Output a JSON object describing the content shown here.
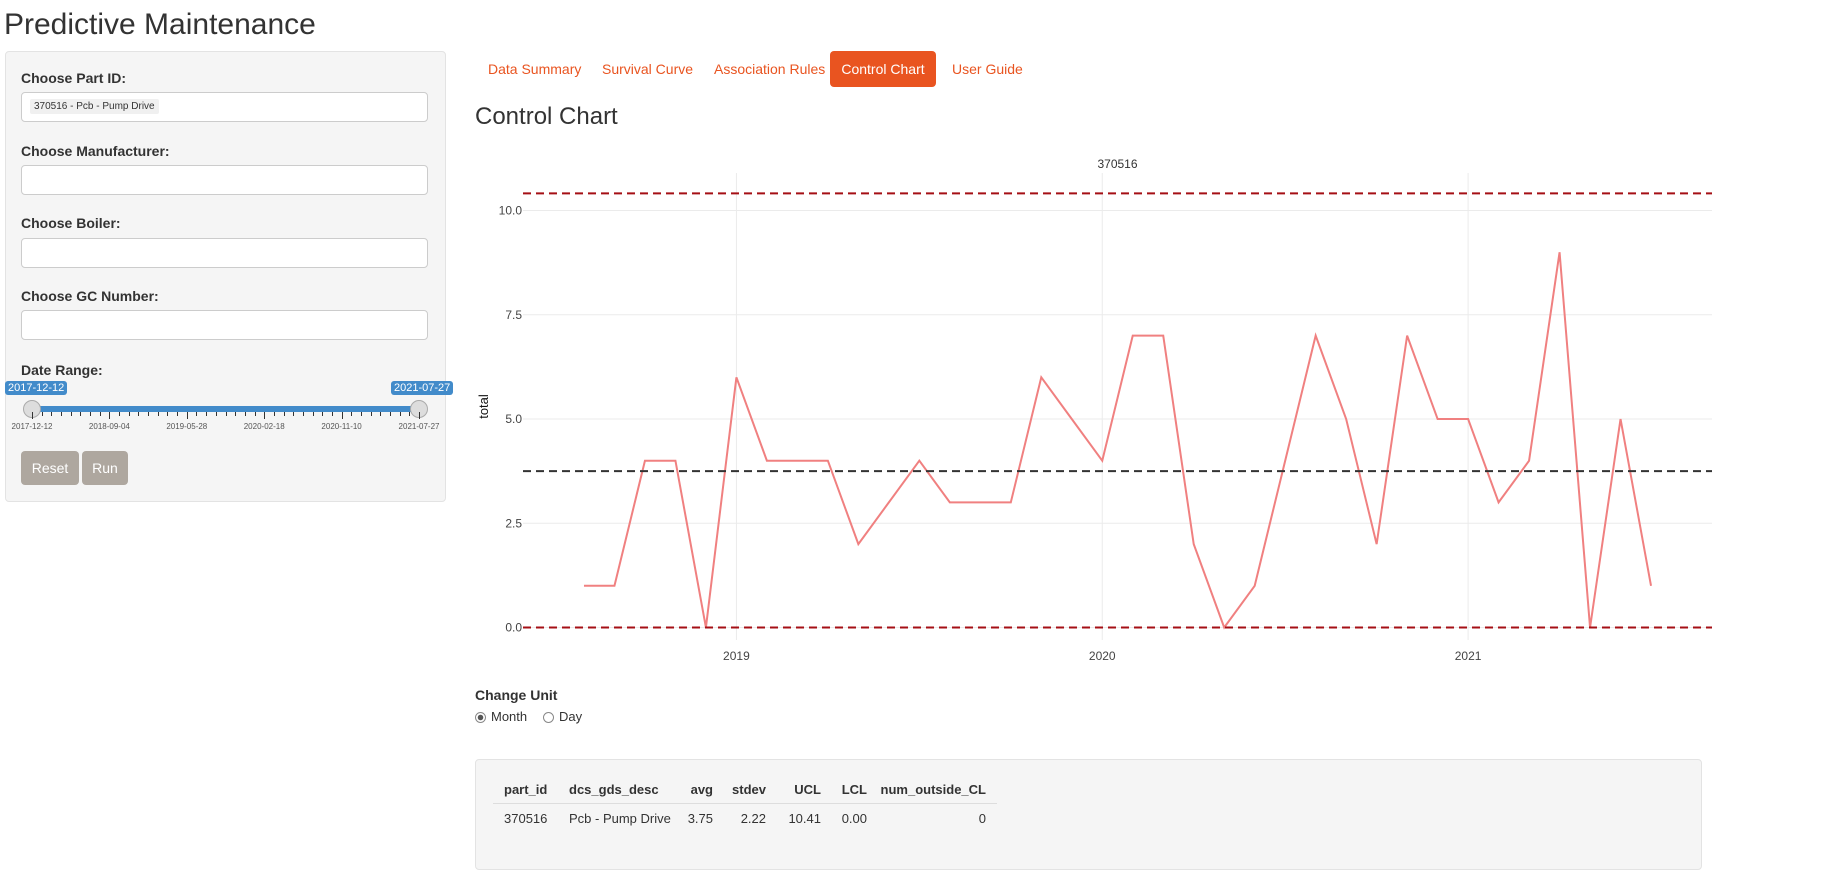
{
  "header": {
    "title": "Predictive Maintenance"
  },
  "sidebar": {
    "part_label": "Choose Part ID:",
    "part_value": "370516 - Pcb - Pump Drive",
    "manufacturer_label": "Choose Manufacturer:",
    "boiler_label": "Choose Boiler:",
    "gc_label": "Choose GC Number:",
    "date_label": "Date Range:",
    "slider": {
      "from": "2017-12-12",
      "to": "2021-07-27",
      "grid": [
        "2017-12-12",
        "2018-09-04",
        "2019-05-28",
        "2020-02-18",
        "2020-11-10",
        "2021-07-27"
      ]
    },
    "buttons": [
      "Reset",
      "Run"
    ]
  },
  "tabs": [
    "Data Summary",
    "Survival Curve",
    "Association Rules",
    "Control Chart",
    "User Guide"
  ],
  "active_tab": 3,
  "section_title": "Control Chart",
  "chart_data": {
    "type": "line",
    "title": "370516",
    "y_label": "total",
    "x": [
      "2018-08",
      "2018-09",
      "2018-10",
      "2018-11",
      "2018-12",
      "2019-01",
      "2019-02",
      "2019-03",
      "2019-04",
      "2019-05",
      "2019-06",
      "2019-07",
      "2019-08",
      "2019-09",
      "2019-10",
      "2019-11",
      "2019-12",
      "2020-01",
      "2020-02",
      "2020-03",
      "2020-04",
      "2020-05",
      "2020-06",
      "2020-07",
      "2020-08",
      "2020-09",
      "2020-10",
      "2020-11",
      "2020-12",
      "2021-01",
      "2021-02",
      "2021-03",
      "2021-04",
      "2021-05",
      "2021-06",
      "2021-07"
    ],
    "values": [
      1,
      1,
      4,
      4,
      0,
      6,
      4,
      4,
      4,
      2,
      3,
      4,
      3,
      3,
      3,
      6,
      5,
      4,
      7,
      7,
      2,
      0,
      1,
      4,
      7,
      5,
      2,
      7,
      5,
      5,
      3,
      4,
      9,
      0,
      5,
      1
    ],
    "color": "#f08080",
    "ucl": 10.41,
    "center": 3.75,
    "lcl": 0,
    "limit_color": "#a50f15",
    "center_color": "#333333",
    "xlim": [
      "2018-06",
      "2021-09"
    ],
    "xticks": [
      {
        "value": "2019-01",
        "label": "2019"
      },
      {
        "value": "2020-01",
        "label": "2020"
      },
      {
        "value": "2021-01",
        "label": "2021"
      }
    ],
    "ylim": [
      -0.3,
      10.9
    ],
    "yticks": [
      {
        "value": 0,
        "label": "0.0"
      },
      2.5,
      {
        "value": 5,
        "label": "5.0"
      },
      7.5,
      {
        "value": 10,
        "label": "10.0"
      }
    ],
    "grid": true
  },
  "unit": {
    "label": "Change Unit",
    "options": [
      "Month",
      "Day"
    ],
    "selected": 0
  },
  "table": {
    "columns": [
      "part_id",
      "dcs_gds_desc",
      "avg",
      "stdev",
      "UCL",
      "LCL",
      "num_outside_CL"
    ],
    "rows": [
      [
        "370516",
        "Pcb - Pump Drive",
        "3.75",
        "2.22",
        "10.41",
        "0.00",
        "0"
      ]
    ]
  }
}
